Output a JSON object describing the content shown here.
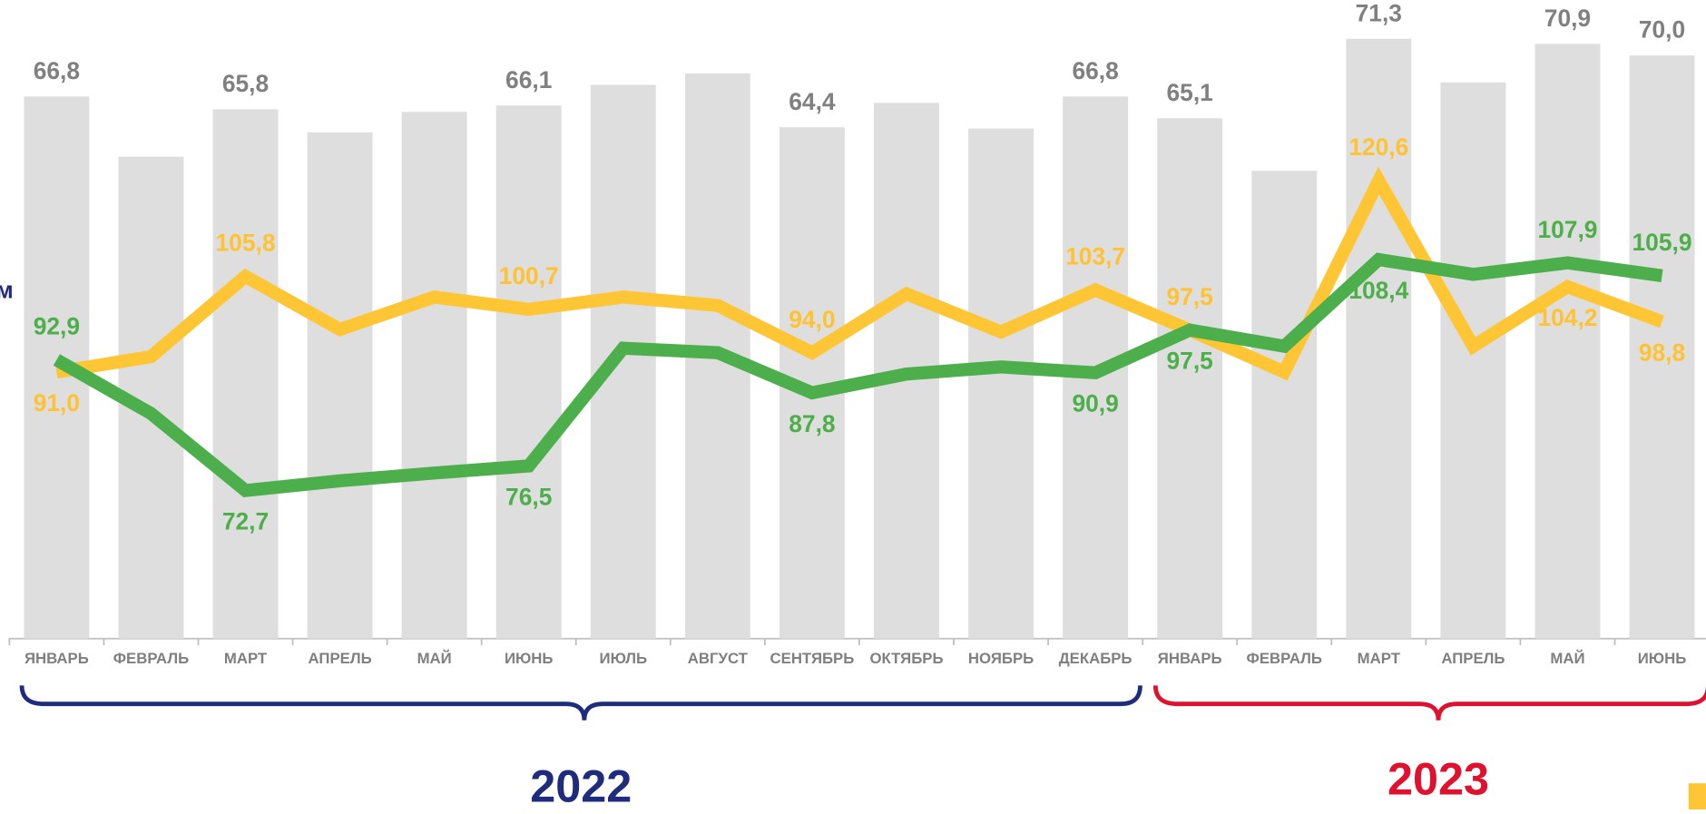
{
  "chart_data": {
    "type": "bar-line",
    "categories": [
      "ЯНВАРЬ",
      "ФЕВРАЛЬ",
      "МАРТ",
      "АПРЕЛЬ",
      "МАЙ",
      "ИЮНЬ",
      "ИЮЛЬ",
      "АВГУСТ",
      "СЕНТЯБРЬ",
      "ОКТЯБРЬ",
      "НОЯБРЬ",
      "ДЕКАБРЬ",
      "ЯНВАРЬ",
      "ФЕВРАЛЬ",
      "МАРТ",
      "АПРЕЛЬ",
      "МАЙ",
      "ИЮНЬ"
    ],
    "annotations": [
      "м"
    ],
    "groups": [
      "2022",
      "2023"
    ],
    "ylim": [
      49.8,
      149.36
    ],
    "y2lim": [
      24.5,
      74.75
    ],
    "series": [
      {
        "type": "bar",
        "axis": "y2",
        "color": "#dedede",
        "label_color": "#808080",
        "values": [
          66.8,
          62.1,
          65.8,
          64.0,
          65.6,
          66.1,
          67.7,
          68.6,
          64.4,
          66.3,
          64.3,
          66.8,
          65.1,
          61.0,
          71.3,
          67.9,
          70.9,
          70.0
        ],
        "value_labels": [
          "66,8",
          null,
          "65,8",
          null,
          null,
          "66,1",
          null,
          null,
          "64,4",
          null,
          null,
          "66,8",
          "65,1",
          null,
          "71,3",
          null,
          "70,9",
          "70,0"
        ]
      },
      {
        "type": "line",
        "color": "#fec534",
        "label_color": "#fec232",
        "values": [
          91.0,
          93.4,
          105.8,
          97.6,
          102.6,
          100.7,
          102.6,
          101.3,
          94.0,
          103.1,
          97.2,
          103.7,
          97.5,
          91.0,
          120.6,
          95.0,
          104.2,
          98.8
        ],
        "value_labels": [
          "91,0",
          null,
          "105,8",
          null,
          null,
          "100,7",
          null,
          null,
          "94,0",
          null,
          null,
          "103,7",
          "97,5",
          null,
          "120,6",
          null,
          "104,2",
          "98,8"
        ]
      },
      {
        "type": "line",
        "color": "#4caf4c",
        "label_color": "#4caf4a",
        "values": [
          92.9,
          84.6,
          72.7,
          74.2,
          75.4,
          76.5,
          94.7,
          94.0,
          87.8,
          90.7,
          91.8,
          90.9,
          97.5,
          95.0,
          108.4,
          106.1,
          107.9,
          105.9
        ],
        "value_labels": [
          "92,9",
          null,
          "72,7",
          null,
          null,
          "76,5",
          null,
          null,
          "87,8",
          null,
          null,
          "90,9",
          "97,5",
          null,
          "108,4",
          null,
          "107,9",
          "105,9"
        ]
      }
    ]
  }
}
